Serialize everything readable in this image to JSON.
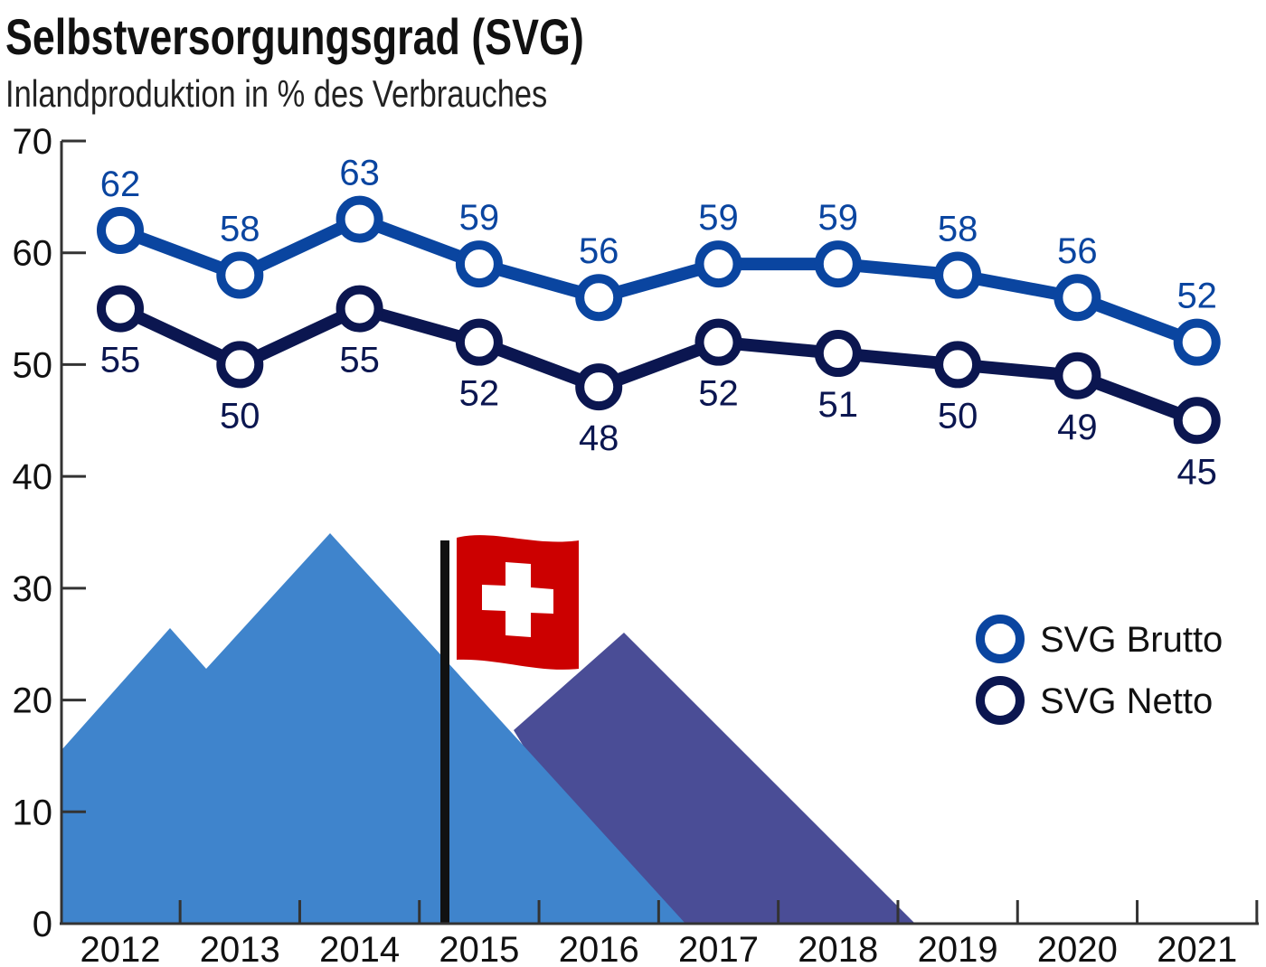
{
  "chart_data": {
    "type": "line",
    "title": "Selbstversorgungsgrad (SVG)",
    "subtitle": "Inlandproduktion in % des Verbrauches",
    "x": [
      "2012",
      "2013",
      "2014",
      "2015",
      "2016",
      "2017",
      "2018",
      "2019",
      "2020",
      "2021"
    ],
    "series": [
      {
        "name": "SVG Brutto",
        "color": "#0a45a0",
        "values": [
          62,
          58,
          63,
          59,
          56,
          59,
          59,
          58,
          56,
          52
        ]
      },
      {
        "name": "SVG Netto",
        "color": "#0b1650",
        "values": [
          55,
          50,
          55,
          52,
          48,
          52,
          51,
          50,
          49,
          45
        ]
      }
    ],
    "ylim": [
      0,
      70
    ],
    "yticks": [
      0,
      10,
      20,
      30,
      40,
      50,
      60,
      70
    ],
    "grid": false,
    "legend_position": "right",
    "data_labels": true,
    "decoration": {
      "mountain_colors": [
        "#3f84cc",
        "#4a4d96"
      ],
      "flag_color": "#cc0000"
    }
  }
}
